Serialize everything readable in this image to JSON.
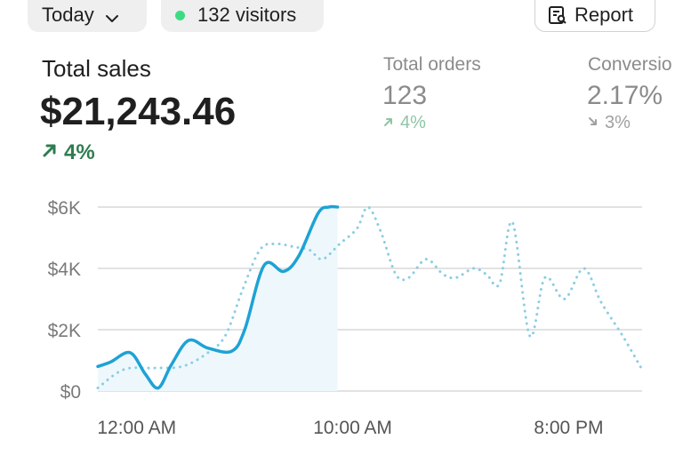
{
  "toolbar": {
    "date_filter": "Today",
    "visitors": "132 visitors",
    "report_label": "Report"
  },
  "metrics": {
    "total_sales": {
      "label": "Total sales",
      "value": "$21,243.46",
      "delta": "4%",
      "direction": "up"
    },
    "total_orders": {
      "label": "Total orders",
      "value": "123",
      "delta": "4%",
      "direction": "up"
    },
    "conversion": {
      "label": "Conversio",
      "value": "2.17%",
      "delta": "3%",
      "direction": "down"
    }
  },
  "colors": {
    "accent": "#1ea2d6",
    "comparison": "#8ccde3",
    "positive": "#2e7d4f",
    "positive_muted": "#8ec5a6",
    "live_dot": "#3ddc84"
  },
  "chart_data": {
    "type": "line",
    "y_ticks": [
      "$6K",
      "$4K",
      "$2K",
      "$0"
    ],
    "y_tick_values": [
      6000,
      4000,
      2000,
      0
    ],
    "x_ticks": [
      "12:00 AM",
      "10:00 AM",
      "8:00 PM"
    ],
    "x_tick_values": [
      0,
      10,
      20
    ],
    "ylim": [
      0,
      6000
    ],
    "xlim": [
      -1.8,
      23.4
    ],
    "grid": true,
    "series": [
      {
        "style": "solid",
        "x": [
          -1.8,
          -1.2,
          -0.3,
          0.4,
          1.0,
          1.6,
          2.4,
          3.3,
          4.4,
          5.0,
          5.9,
          6.8,
          7.5,
          8.4,
          8.9,
          9.3
        ],
        "y": [
          800,
          950,
          1250,
          550,
          100,
          850,
          1650,
          1400,
          1300,
          2000,
          4100,
          3900,
          4400,
          5800,
          6000,
          6000
        ]
      },
      {
        "style": "dotted",
        "x": [
          -1.8,
          -0.6,
          0.8,
          2.1,
          3.2,
          4.1,
          4.9,
          5.7,
          6.4,
          7.3,
          8.0,
          8.6,
          9.4,
          10.2,
          10.7,
          11.3,
          12.0,
          12.6,
          13.4,
          14.2,
          14.8,
          15.6,
          16.2,
          16.8,
          17.4,
          18.2,
          18.9,
          19.8,
          20.7,
          21.5,
          22.5,
          23.4
        ],
        "y": [
          100,
          700,
          750,
          800,
          1200,
          1800,
          3300,
          4600,
          4800,
          4700,
          4600,
          4300,
          4800,
          5300,
          6000,
          5200,
          3800,
          3700,
          4300,
          3800,
          3700,
          4000,
          3800,
          3500,
          5500,
          1800,
          3700,
          3000,
          4000,
          2900,
          1800,
          700
        ]
      }
    ]
  }
}
